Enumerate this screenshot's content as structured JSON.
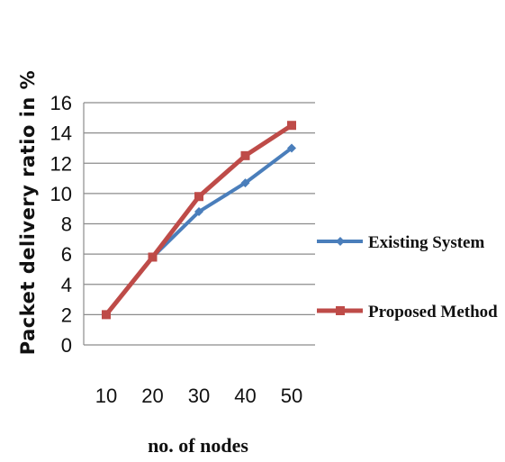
{
  "chart_data": {
    "type": "line",
    "title": "",
    "xlabel": "no. of nodes",
    "ylabel": "Packet delivery ratio in %",
    "x": [
      10,
      20,
      30,
      40,
      50
    ],
    "x_tick_labels": [
      "10",
      "20",
      "30",
      "40",
      "50"
    ],
    "y_tick_labels": [
      "0",
      "2",
      "4",
      "6",
      "8",
      "10",
      "12",
      "14",
      "16"
    ],
    "ylim": [
      0,
      16
    ],
    "grid": true,
    "legend_position": "right",
    "series": [
      {
        "name": "Existing System",
        "values": [
          2.0,
          5.8,
          8.8,
          10.7,
          13.0
        ],
        "color": "#4a7ebb",
        "marker": "diamond"
      },
      {
        "name": "Proposed Method",
        "values": [
          2.0,
          5.8,
          9.8,
          12.5,
          14.5
        ],
        "color": "#be4b48",
        "marker": "square"
      }
    ]
  }
}
